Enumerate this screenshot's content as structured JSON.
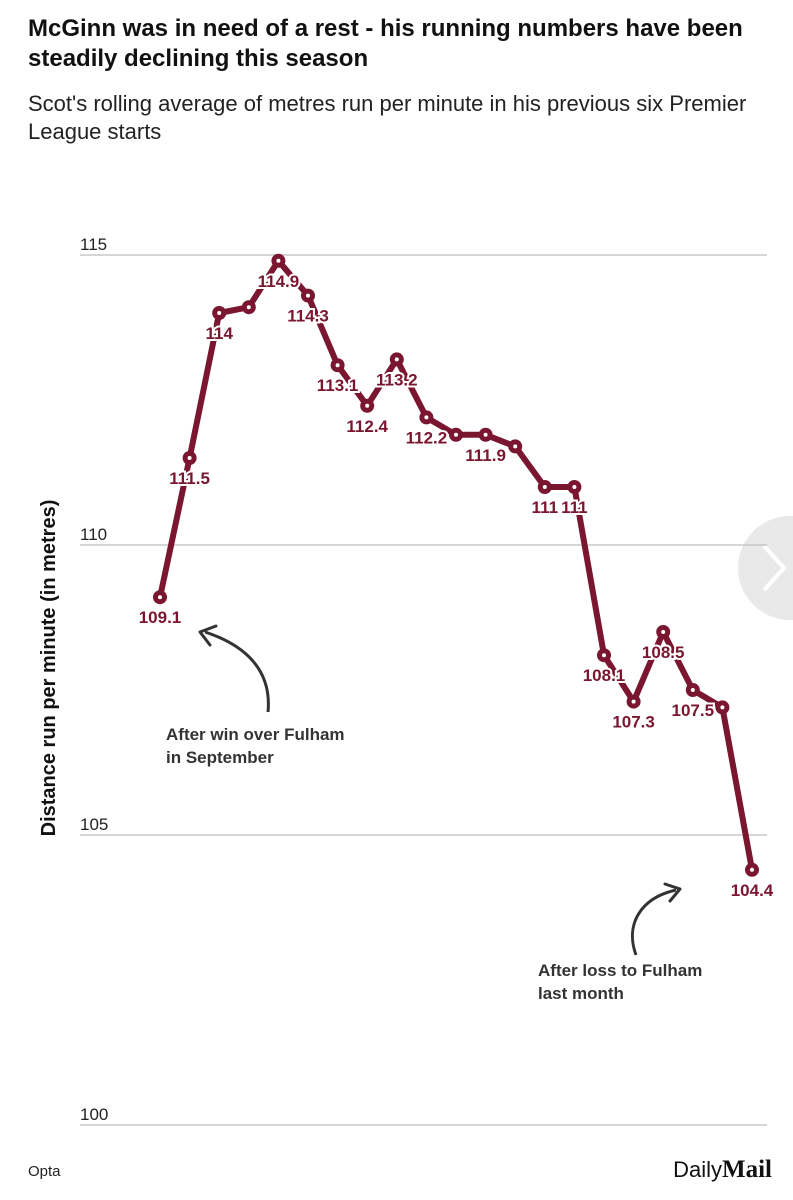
{
  "chart_data": {
    "type": "line",
    "title": "McGinn was in need of a rest - his running numbers have been steadily declining this season",
    "subtitle": "Scot's rolling average of metres run per minute in his previous six Premier League starts",
    "y_label": "Distance run per minute (in metres)",
    "series": [
      {
        "name": null,
        "color": "#7b1630",
        "values": [
          109.1,
          111.5,
          114,
          114.1,
          114.9,
          114.3,
          113.1,
          112.4,
          113.2,
          112.2,
          111.9,
          111.9,
          111.7,
          111,
          111,
          108.1,
          107.3,
          108.5,
          107.5,
          107.2,
          104.4
        ],
        "value_labels": [
          "109.1",
          "111.5",
          "114",
          null,
          "114.9",
          "114.3",
          "113.1",
          "112.4",
          "113.2",
          "112.2",
          null,
          "111.9",
          null,
          "111",
          "111",
          "108.1",
          "107.3",
          "108.5",
          "107.5",
          null,
          "104.4"
        ]
      }
    ],
    "ylim": [
      100,
      115
    ],
    "yticks": [
      100,
      105,
      110,
      115
    ],
    "grid": true,
    "annotations": [
      {
        "lines": [
          "After win over Fulham",
          "in September"
        ],
        "point": 0
      },
      {
        "lines": [
          "After loss to Fulham",
          "last month"
        ],
        "point": 20
      }
    ],
    "source": "Opta",
    "logo": [
      "Daily",
      "Mail"
    ]
  }
}
